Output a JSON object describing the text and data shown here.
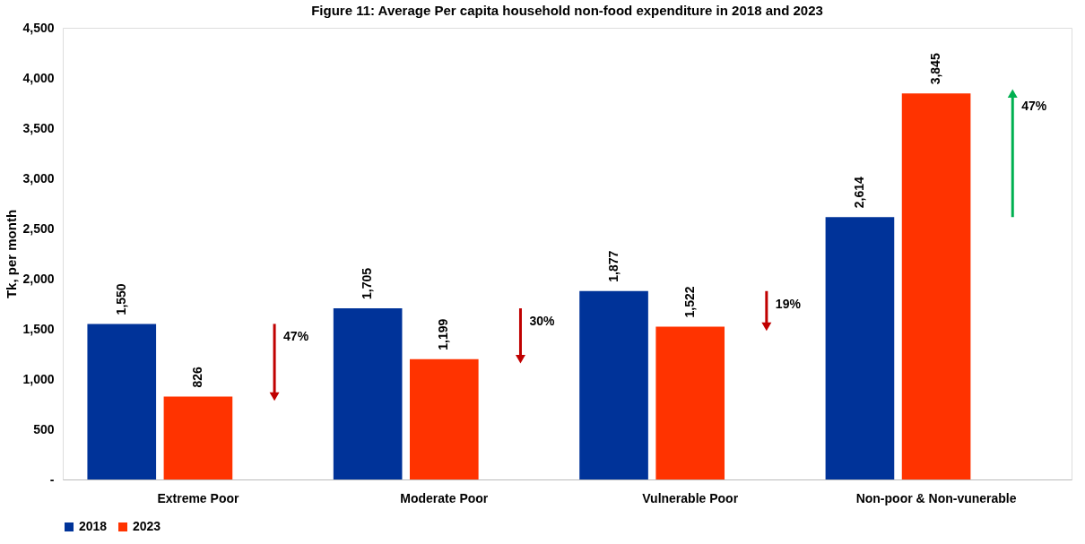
{
  "chart_data": {
    "type": "bar",
    "title": "Figure 11: Average Per capita household non-food expenditure in 2018 and 2023",
    "ylabel": "Tk, per month",
    "categories": [
      "Extreme Poor",
      "Moderate Poor",
      "Vulnerable Poor",
      "Non-poor & Non-vunerable"
    ],
    "series": [
      {
        "name": "2018",
        "color": "#003399",
        "values": [
          1550,
          1705,
          1877,
          2614
        ],
        "value_labels": [
          "1,550",
          "1,705",
          "1,877",
          "2,614"
        ]
      },
      {
        "name": "2023",
        "color": "#ff3300",
        "values": [
          826,
          1199,
          1522,
          3845
        ],
        "value_labels": [
          "826",
          "1,199",
          "1,522",
          "3,845"
        ]
      }
    ],
    "ylim": [
      0,
      4500
    ],
    "yticks": [
      {
        "value": 0,
        "label": "-"
      },
      500,
      {
        "value": 1000,
        "label": "1,000"
      },
      {
        "value": 1500,
        "label": "1,500"
      },
      {
        "value": 2000,
        "label": "2,000"
      },
      {
        "value": 2500,
        "label": "2,500"
      },
      {
        "value": 3000,
        "label": "3,000"
      },
      {
        "value": 3500,
        "label": "3,500"
      },
      {
        "value": 4000,
        "label": "4,000"
      },
      {
        "value": 4500,
        "label": "4,500"
      }
    ],
    "grid": false,
    "legend": "bottom",
    "annotations": [
      "47%",
      "30%",
      "19%",
      "47%"
    ]
  }
}
